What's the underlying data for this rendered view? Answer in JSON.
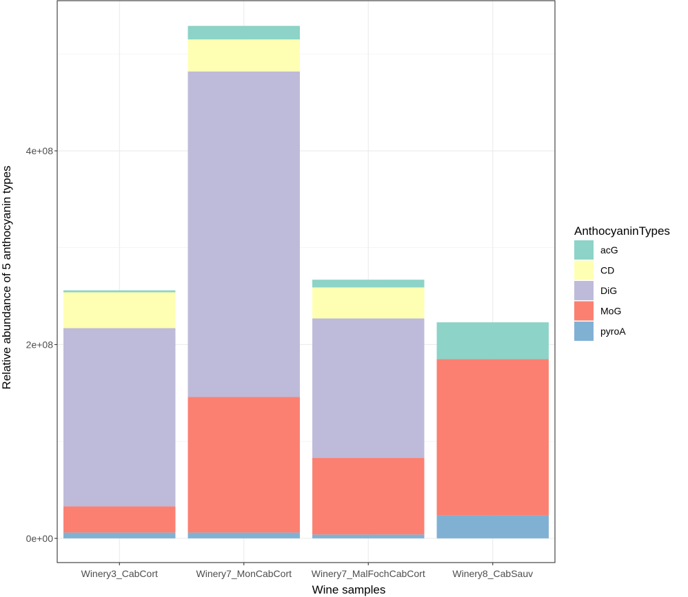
{
  "chart_data": {
    "type": "bar",
    "stacked": true,
    "title": "",
    "xlabel": "Wine samples",
    "ylabel": "Relative abundance of 5 anthocyanin types",
    "ylim": [
      -25000000,
      555000000
    ],
    "y_ticks": [
      0,
      200000000,
      400000000
    ],
    "y_tick_labels": [
      "0e+00",
      "2e+08",
      "4e+08"
    ],
    "grid": true,
    "legend_position": "right",
    "legend_title": "AnthocyaninTypes",
    "categories": [
      "Winery3_CabCort",
      "Winery7_MonCabCort",
      "Winery7_MalFochCabCort",
      "Winery8_CabSauv"
    ],
    "stack_order": [
      "pyroA",
      "MoG",
      "DiG",
      "CD",
      "acG"
    ],
    "series": [
      {
        "name": "acG",
        "color": "#8DD3C7",
        "values": [
          2000000,
          14000000,
          8000000,
          38000000
        ]
      },
      {
        "name": "CD",
        "color": "#FFFFB3",
        "values": [
          37000000,
          33000000,
          32000000,
          0
        ]
      },
      {
        "name": "DiG",
        "color": "#BEBADA",
        "values": [
          184000000,
          336000000,
          144000000,
          0
        ]
      },
      {
        "name": "MoG",
        "color": "#FB8072",
        "values": [
          27000000,
          140000000,
          79000000,
          161000000
        ]
      },
      {
        "name": "pyroA",
        "color": "#80B1D3",
        "values": [
          6000000,
          6000000,
          4000000,
          24000000
        ]
      }
    ]
  }
}
